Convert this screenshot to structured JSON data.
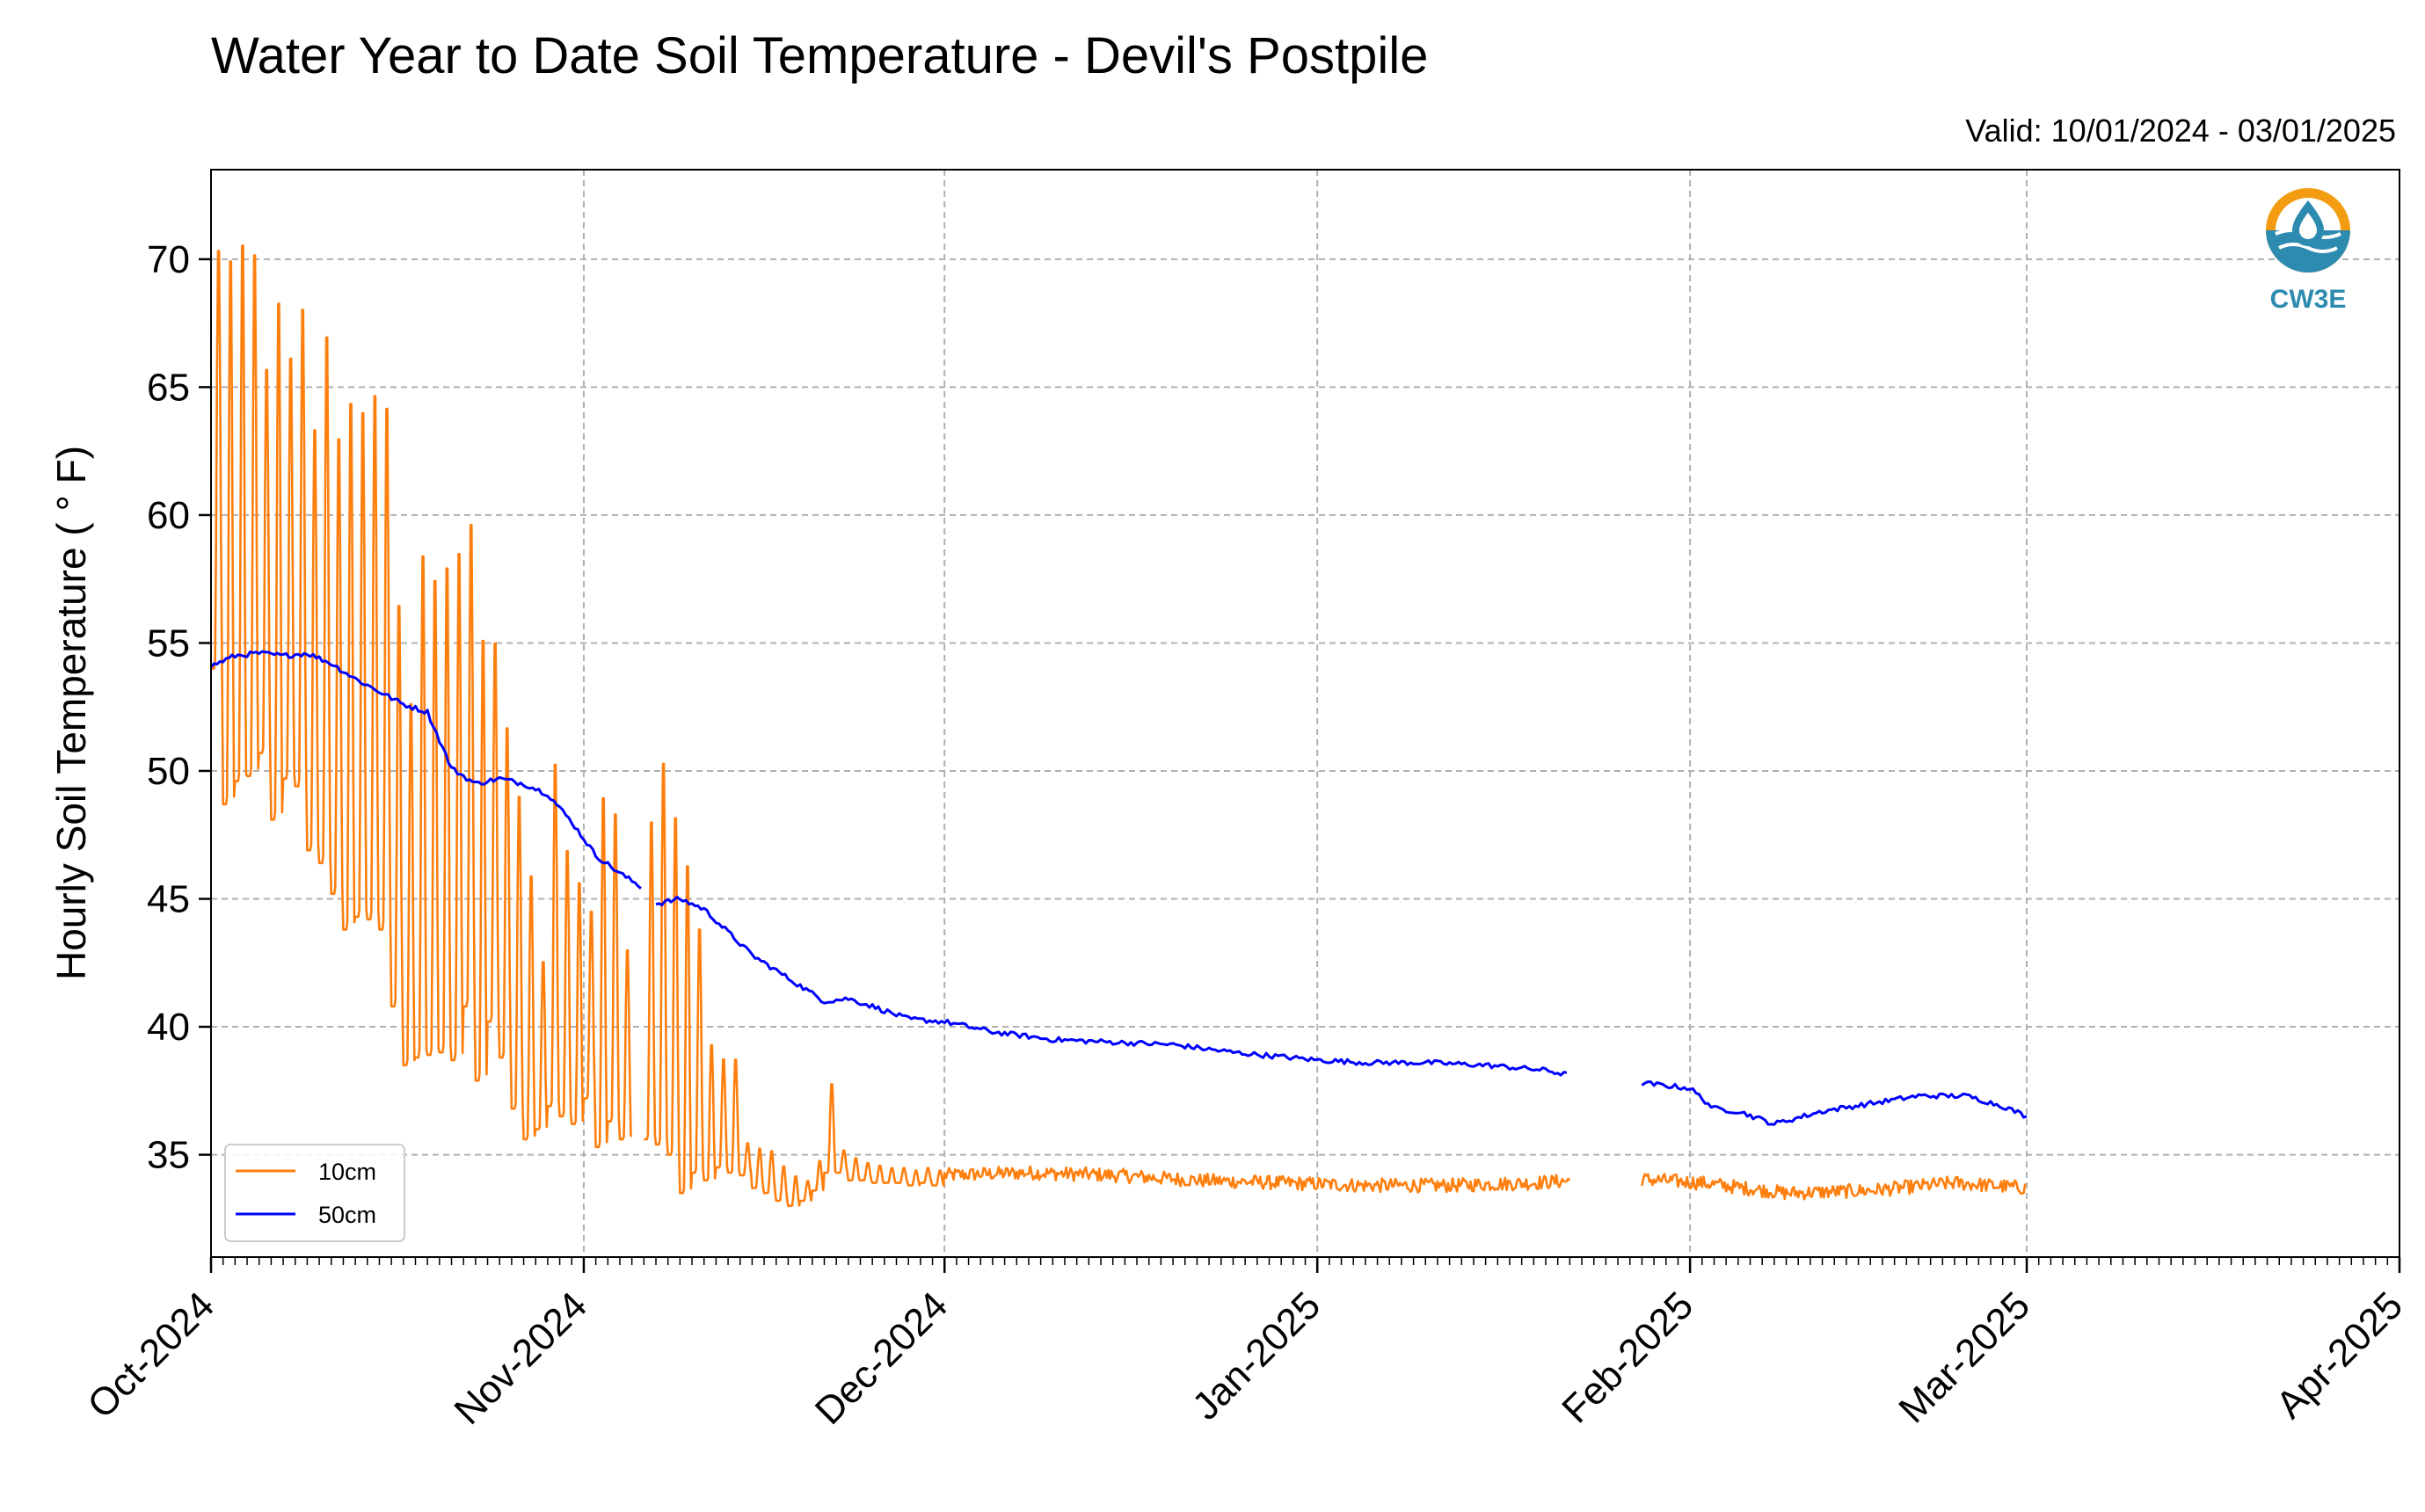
{
  "title": "Water Year to Date Soil Temperature - Devil's Postpile",
  "valid_label": "Valid: 10/01/2024 - 03/01/2025",
  "logo": {
    "text": "CW3E",
    "icon": "water-drop-logo-icon",
    "color": "#2e8bb0",
    "accent": "#f39c12"
  },
  "colors": {
    "series_10cm": "#ff7f0e",
    "series_50cm": "#0000ff",
    "grid": "#b0b0b0"
  },
  "chart_data": {
    "type": "line",
    "title": "Water Year to Date Soil Temperature - Devil's Postpile",
    "xlabel": "",
    "ylabel": "Hourly Soil Temperature ( ° F)",
    "xlim": [
      "2024-10-01",
      "2025-04-01"
    ],
    "ylim": [
      31,
      73.5
    ],
    "x_ticks": [
      "Oct-2024",
      "Nov-2024",
      "Dec-2024",
      "Jan-2025",
      "Feb-2025",
      "Mar-2025",
      "Apr-2025"
    ],
    "y_ticks": [
      35,
      40,
      45,
      50,
      55,
      60,
      65,
      70
    ],
    "grid": true,
    "legend_position": "lower-left",
    "series": [
      {
        "name": "10cm",
        "color": "#ff7f0e",
        "daily_min_max": {
          "dates": [
            "2024-10-01",
            "2024-10-02",
            "2024-10-03",
            "2024-10-04",
            "2024-10-05",
            "2024-10-06",
            "2024-10-07",
            "2024-10-08",
            "2024-10-09",
            "2024-10-10",
            "2024-10-11",
            "2024-10-12",
            "2024-10-13",
            "2024-10-14",
            "2024-10-15",
            "2024-10-16",
            "2024-10-17",
            "2024-10-18",
            "2024-10-19",
            "2024-10-20",
            "2024-10-21",
            "2024-10-22",
            "2024-10-23",
            "2024-10-24",
            "2024-10-25",
            "2024-10-26",
            "2024-10-27",
            "2024-10-28",
            "2024-10-29",
            "2024-10-30",
            "2024-10-31",
            "2024-11-01",
            "2024-11-02",
            "2024-11-03",
            "2024-11-04",
            "2024-11-05",
            "2024-11-06",
            "2024-11-07",
            "2024-11-08",
            "2024-11-09",
            "2024-11-10",
            "2024-11-11",
            "2024-11-12",
            "2024-11-13",
            "2024-11-14",
            "2024-11-15",
            "2024-11-16",
            "2024-11-17",
            "2024-11-18",
            "2024-11-19",
            "2024-11-20",
            "2024-11-21",
            "2024-11-22",
            "2024-11-23",
            "2024-11-24",
            "2024-11-25",
            "2024-11-26",
            "2024-11-27",
            "2024-11-28",
            "2024-11-29",
            "2024-11-30"
          ],
          "max": [
            71.0,
            70.8,
            71.4,
            71.0,
            66.3,
            69.1,
            66.8,
            68.8,
            64.0,
            67.8,
            63.7,
            65.2,
            64.8,
            65.5,
            65.0,
            57.1,
            53.2,
            59.2,
            58.2,
            58.7,
            59.3,
            60.4,
            55.8,
            55.6,
            52.2,
            49.5,
            46.3,
            42.8,
            50.8,
            47.3,
            46.0,
            44.8,
            49.5,
            48.8,
            43.3,
            null,
            48.5,
            50.9,
            48.7,
            46.8,
            44.2,
            39.5,
            38.9,
            38.9,
            35.5,
            35.3,
            35.2,
            34.6,
            34.2,
            34.0,
            34.8,
            37.9,
            35.2,
            34.9,
            34.7,
            34.6,
            34.5,
            34.5,
            34.4,
            34.5,
            34.4
          ],
          "min": [
            54.0,
            48.7,
            49.6,
            49.8,
            50.7,
            48.1,
            49.7,
            49.4,
            46.9,
            46.4,
            45.2,
            43.8,
            44.3,
            44.2,
            43.8,
            40.8,
            38.5,
            38.8,
            38.9,
            39.0,
            38.7,
            40.8,
            37.9,
            40.2,
            38.8,
            36.8,
            35.6,
            36.0,
            36.9,
            36.5,
            36.2,
            37.2,
            35.3,
            36.3,
            35.6,
            null,
            35.6,
            35.4,
            35.0,
            33.5,
            34.3,
            34.0,
            34.5,
            34.3,
            34.2,
            33.7,
            33.5,
            33.2,
            33.0,
            33.2,
            33.6,
            34.3,
            34.3,
            34.0,
            34.0,
            33.9,
            33.9,
            33.9,
            33.8,
            33.9,
            33.8
          ]
        },
        "weekly_mean": {
          "dates": [
            "2024-12-01",
            "2024-12-08",
            "2024-12-15",
            "2024-12-22",
            "2024-12-29",
            "2025-01-05",
            "2025-01-12",
            "2025-01-19",
            "2025-01-26",
            "2025-02-02",
            "2025-02-09",
            "2025-02-16",
            "2025-02-23",
            "2025-03-01"
          ],
          "values": [
            34.2,
            34.3,
            34.2,
            34.0,
            33.9,
            33.8,
            33.8,
            33.9,
            34.1,
            33.9,
            33.5,
            33.6,
            33.9,
            33.7
          ]
        },
        "gaps": [
          [
            "2024-11-06",
            "2024-11-07"
          ],
          [
            "2025-01-22",
            "2025-01-28"
          ]
        ]
      },
      {
        "name": "50cm",
        "color": "#0000ff",
        "points": {
          "dates": [
            "2024-10-01",
            "2024-10-03",
            "2024-10-05",
            "2024-10-07",
            "2024-10-09",
            "2024-10-11",
            "2024-10-13",
            "2024-10-15",
            "2024-10-17",
            "2024-10-19",
            "2024-10-21",
            "2024-10-23",
            "2024-10-25",
            "2024-10-27",
            "2024-10-29",
            "2024-10-31",
            "2024-11-02",
            "2024-11-04",
            "2024-11-06",
            "2024-11-07",
            "2024-11-09",
            "2024-11-11",
            "2024-11-13",
            "2024-11-15",
            "2024-11-17",
            "2024-11-19",
            "2024-11-21",
            "2024-11-23",
            "2024-11-25",
            "2024-11-28",
            "2024-12-01",
            "2024-12-05",
            "2024-12-10",
            "2024-12-15",
            "2024-12-20",
            "2024-12-25",
            "2025-01-01",
            "2025-01-05",
            "2025-01-10",
            "2025-01-15",
            "2025-01-20",
            "2025-01-22",
            "2025-01-28",
            "2025-02-01",
            "2025-02-03",
            "2025-02-05",
            "2025-02-08",
            "2025-02-12",
            "2025-02-16",
            "2025-02-20",
            "2025-02-24",
            "2025-02-27",
            "2025-03-01"
          ],
          "values": [
            54.1,
            54.5,
            54.6,
            54.5,
            54.6,
            54.2,
            53.6,
            53.1,
            52.6,
            52.3,
            50.1,
            49.5,
            49.7,
            49.5,
            49.1,
            48.0,
            46.7,
            46.0,
            45.4,
            44.8,
            45.0,
            44.6,
            43.7,
            42.8,
            42.2,
            41.6,
            41.0,
            41.1,
            40.8,
            40.3,
            40.2,
            39.8,
            39.5,
            39.4,
            39.3,
            39.0,
            38.7,
            38.6,
            38.6,
            38.5,
            38.3,
            38.1,
            37.8,
            37.6,
            36.8,
            36.7,
            36.2,
            36.7,
            37.0,
            37.3,
            37.3,
            36.9,
            36.5
          ]
        },
        "gaps": [
          [
            "2024-11-06",
            "2024-11-07"
          ],
          [
            "2025-01-22",
            "2025-01-28"
          ]
        ]
      }
    ]
  }
}
